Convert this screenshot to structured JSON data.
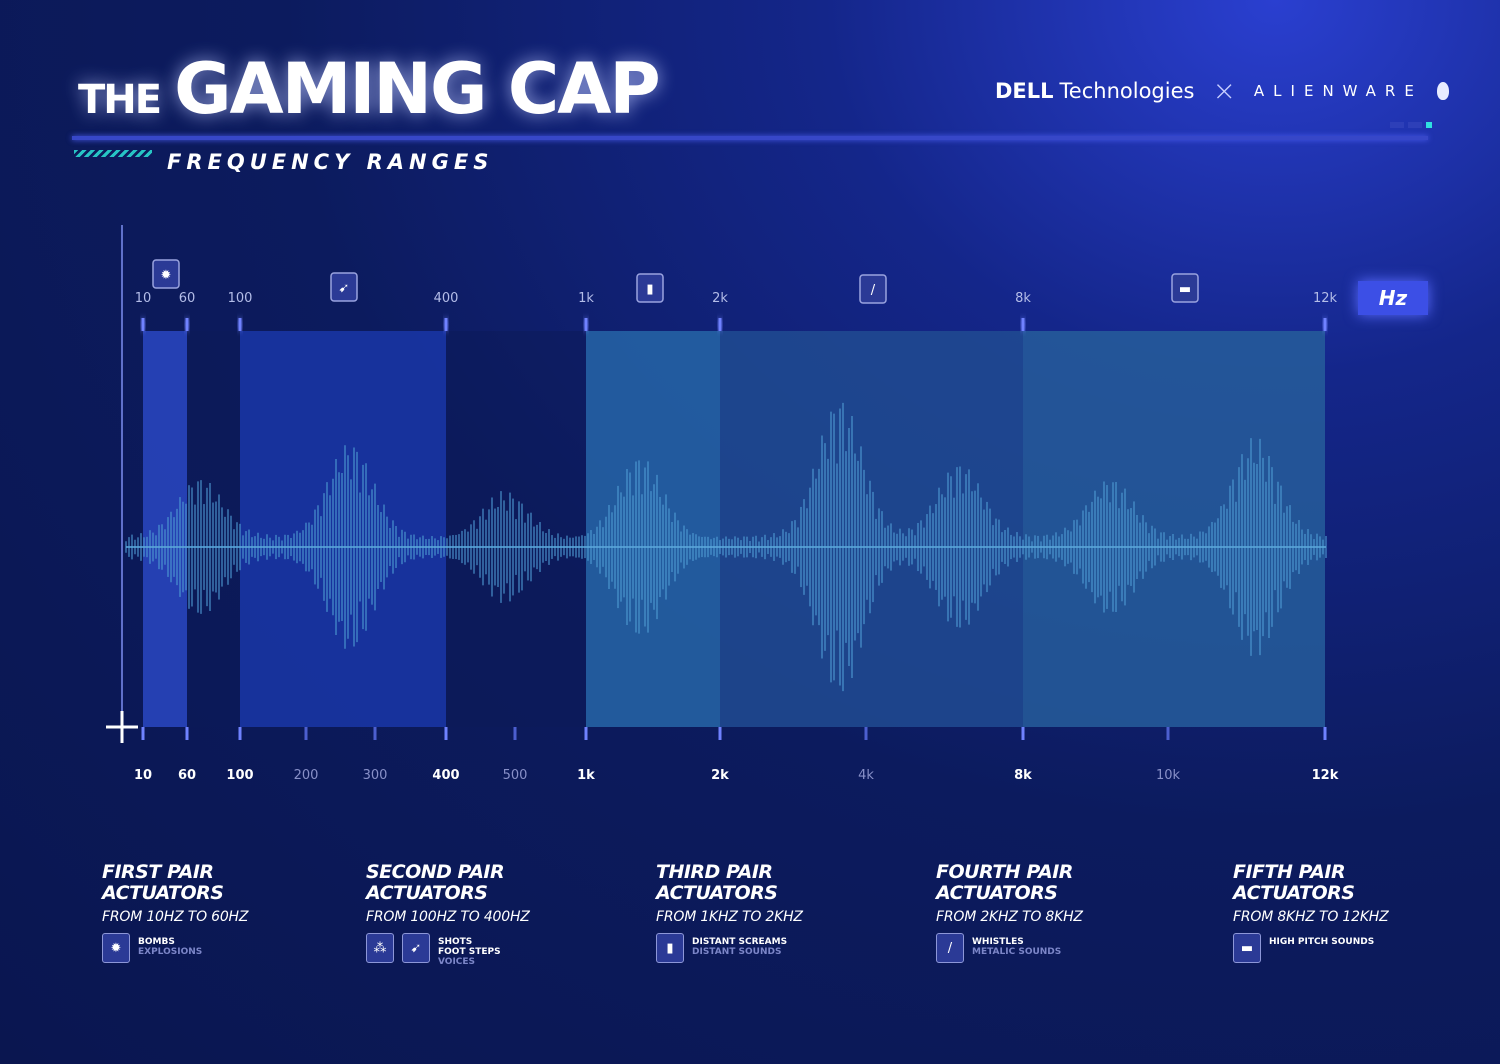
{
  "header": {
    "title_prefix": "THE",
    "title_main": "GAMING CAP",
    "subtitle": "FREQUENCY RANGES",
    "brand_dell": "DELL",
    "brand_tech": "Technologies",
    "brand_x": "×",
    "brand_alienware": "ALIENWARE"
  },
  "chart": {
    "unit": "Hz",
    "top_ticks": [
      "10",
      "60",
      "100",
      "400",
      "1k",
      "2k",
      "8k",
      "12k"
    ],
    "bottom_ticks": [
      {
        "label": "10",
        "bold": true
      },
      {
        "label": "60",
        "bold": true
      },
      {
        "label": "100",
        "bold": true
      },
      {
        "label": "200",
        "bold": false
      },
      {
        "label": "300",
        "bold": false
      },
      {
        "label": "400",
        "bold": true
      },
      {
        "label": "500",
        "bold": false
      },
      {
        "label": "1k",
        "bold": true
      },
      {
        "label": "2k",
        "bold": true
      },
      {
        "label": "4k",
        "bold": false
      },
      {
        "label": "8k",
        "bold": true
      },
      {
        "label": "10k",
        "bold": false
      },
      {
        "label": "12k",
        "bold": true
      }
    ],
    "bands": [
      {
        "from": "10",
        "to": "60",
        "icon": "grenade-icon",
        "color": "#2f4fd6"
      },
      {
        "from": "100",
        "to": "400",
        "icon": "gun-icon",
        "color": "#1c3bb5"
      },
      {
        "from": "1k",
        "to": "2k",
        "icon": "waveform-icon",
        "color": "#2b73b5"
      },
      {
        "from": "2k",
        "to": "8k",
        "icon": "whistle-icon",
        "color": "#24559c"
      },
      {
        "from": "8k",
        "to": "12k",
        "icon": "equalizer-icon",
        "color": "#2b6aa8"
      }
    ]
  },
  "groups": [
    {
      "title_1": "FIRST PAIR",
      "title_2": "ACTUATORS",
      "range": "FROM 10HZ TO 60HZ",
      "icons": [
        "grenade-icon"
      ],
      "labels": [
        "BOMBS"
      ],
      "dim_labels": [
        "EXPLOSIONS"
      ]
    },
    {
      "title_1": "SECOND PAIR",
      "title_2": "ACTUATORS",
      "range": "FROM 100HZ TO 400HZ",
      "icons": [
        "footsteps-icon",
        "gun-icon"
      ],
      "labels": [
        "SHOTS",
        "FOOT STEPS"
      ],
      "dim_labels": [
        "VOICES"
      ]
    },
    {
      "title_1": "THIRD PAIR",
      "title_2": "ACTUATORS",
      "range": "FROM 1KHZ TO 2KHZ",
      "icons": [
        "waveform-icon"
      ],
      "labels": [
        "DISTANT SCREAMS"
      ],
      "dim_labels": [
        "DISTANT SOUNDS"
      ]
    },
    {
      "title_1": "FOURTH PAIR",
      "title_2": "ACTUATORS",
      "range": "FROM 2KHZ TO 8KHZ",
      "icons": [
        "whistle-icon"
      ],
      "labels": [
        "WHISTLES"
      ],
      "dim_labels": [
        "METALIC SOUNDS"
      ]
    },
    {
      "title_1": "FIFTH PAIR",
      "title_2": "ACTUATORS",
      "range": "FROM 8KHZ TO 12KHZ",
      "icons": [
        "equalizer-icon"
      ],
      "labels": [
        "HIGH PITCH SOUNDS"
      ],
      "dim_labels": []
    }
  ]
}
